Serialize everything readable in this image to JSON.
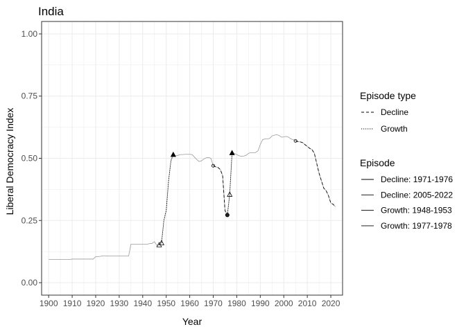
{
  "chart_data": {
    "type": "line",
    "title": "India",
    "xlabel": "Year",
    "ylabel": "Liberal Democracy Index",
    "xlim": [
      1897,
      2025
    ],
    "ylim": [
      -0.05,
      1.05
    ],
    "x_ticks": [
      1900,
      1910,
      1920,
      1930,
      1940,
      1950,
      1960,
      1970,
      1980,
      1990,
      2000,
      2010,
      2020
    ],
    "y_ticks": [
      0.0,
      0.25,
      0.5,
      0.75,
      1.0
    ],
    "y_tick_labels": [
      "0.00",
      "0.25",
      "0.50",
      "0.75",
      "1.00"
    ],
    "grid": true,
    "base_series": {
      "x": [
        1900,
        1901,
        1902,
        1903,
        1904,
        1905,
        1906,
        1907,
        1908,
        1909,
        1910,
        1911,
        1912,
        1913,
        1914,
        1915,
        1916,
        1917,
        1918,
        1919,
        1920,
        1921,
        1922,
        1923,
        1924,
        1925,
        1926,
        1927,
        1928,
        1929,
        1930,
        1931,
        1932,
        1933,
        1934,
        1935,
        1936,
        1937,
        1938,
        1939,
        1940,
        1941,
        1942,
        1943,
        1944,
        1945,
        1946,
        1947,
        1948,
        1949,
        1950,
        1951,
        1952,
        1953,
        1954,
        1955,
        1956,
        1957,
        1958,
        1959,
        1960,
        1961,
        1962,
        1963,
        1964,
        1965,
        1966,
        1967,
        1968,
        1969,
        1970,
        1971,
        1972,
        1973,
        1974,
        1975,
        1976,
        1977,
        1978,
        1979,
        1980,
        1981,
        1982,
        1983,
        1984,
        1985,
        1986,
        1987,
        1988,
        1989,
        1990,
        1991,
        1992,
        1993,
        1994,
        1995,
        1996,
        1997,
        1998,
        1999,
        2000,
        2001,
        2002,
        2003,
        2004,
        2005,
        2006,
        2007,
        2008,
        2009,
        2010,
        2011,
        2012,
        2013,
        2014,
        2015,
        2016,
        2017,
        2018,
        2019,
        2020,
        2021,
        2022
      ],
      "y": [
        0.093,
        0.093,
        0.093,
        0.093,
        0.093,
        0.093,
        0.093,
        0.093,
        0.093,
        0.093,
        0.095,
        0.095,
        0.095,
        0.095,
        0.095,
        0.095,
        0.095,
        0.095,
        0.095,
        0.095,
        0.105,
        0.105,
        0.106,
        0.108,
        0.108,
        0.107,
        0.107,
        0.107,
        0.107,
        0.107,
        0.107,
        0.107,
        0.107,
        0.107,
        0.107,
        0.155,
        0.155,
        0.155,
        0.155,
        0.155,
        0.155,
        0.155,
        0.155,
        0.157,
        0.158,
        0.165,
        0.15,
        0.152,
        0.16,
        0.25,
        0.29,
        0.41,
        0.49,
        0.515,
        0.51,
        0.512,
        0.515,
        0.515,
        0.516,
        0.516,
        0.516,
        0.515,
        0.505,
        0.495,
        0.487,
        0.49,
        0.497,
        0.502,
        0.503,
        0.5,
        0.47,
        0.466,
        0.463,
        0.455,
        0.43,
        0.29,
        0.272,
        0.355,
        0.522,
        0.52,
        0.515,
        0.51,
        0.508,
        0.509,
        0.512,
        0.52,
        0.523,
        0.522,
        0.523,
        0.53,
        0.555,
        0.575,
        0.578,
        0.578,
        0.58,
        0.59,
        0.593,
        0.595,
        0.592,
        0.585,
        0.586,
        0.588,
        0.585,
        0.578,
        0.575,
        0.57,
        0.567,
        0.566,
        0.563,
        0.555,
        0.548,
        0.54,
        0.535,
        0.52,
        0.48,
        0.44,
        0.41,
        0.38,
        0.37,
        0.35,
        0.32,
        0.315,
        0.305
      ]
    },
    "series": [
      {
        "name": "Growth: 1948-1953",
        "type": "Growth",
        "x": [
          1948,
          1949,
          1950,
          1951,
          1952,
          1953
        ],
        "y": [
          0.16,
          0.25,
          0.29,
          0.41,
          0.49,
          0.515
        ]
      },
      {
        "name": "Decline: 1971-1976",
        "type": "Decline",
        "x": [
          1970,
          1971,
          1972,
          1973,
          1974,
          1975,
          1976
        ],
        "y": [
          0.47,
          0.466,
          0.463,
          0.455,
          0.43,
          0.29,
          0.272
        ]
      },
      {
        "name": "Growth: 1977-1978",
        "type": "Growth",
        "x": [
          1976,
          1977,
          1978
        ],
        "y": [
          0.272,
          0.355,
          0.522
        ]
      },
      {
        "name": "Decline: 2005-2022",
        "type": "Decline",
        "x": [
          2005,
          2006,
          2007,
          2008,
          2009,
          2010,
          2011,
          2012,
          2013,
          2014,
          2015,
          2016,
          2017,
          2018,
          2019,
          2020,
          2021,
          2022
        ],
        "y": [
          0.57,
          0.567,
          0.566,
          0.563,
          0.555,
          0.548,
          0.54,
          0.535,
          0.52,
          0.48,
          0.44,
          0.41,
          0.38,
          0.37,
          0.35,
          0.32,
          0.315,
          0.305
        ]
      }
    ],
    "markers": [
      {
        "x": 1947,
        "y": 0.152,
        "shape": "triangle-open"
      },
      {
        "x": 1948,
        "y": 0.16,
        "shape": "triangle-open"
      },
      {
        "x": 1953,
        "y": 0.515,
        "shape": "triangle-filled"
      },
      {
        "x": 1970,
        "y": 0.47,
        "shape": "circle-open"
      },
      {
        "x": 1976,
        "y": 0.272,
        "shape": "circle-filled"
      },
      {
        "x": 1977,
        "y": 0.355,
        "shape": "triangle-open"
      },
      {
        "x": 1978,
        "y": 0.522,
        "shape": "triangle-filled"
      },
      {
        "x": 2005,
        "y": 0.57,
        "shape": "circle-open"
      }
    ],
    "legend": {
      "placement": "right",
      "episode_type_title": "Episode type",
      "episode_types": [
        {
          "label": "Decline",
          "dash": "dashed"
        },
        {
          "label": "Growth",
          "dash": "dotted"
        }
      ],
      "episode_title": "Episode",
      "episodes": [
        "Decline: 1971-1976",
        "Decline: 2005-2022",
        "Growth: 1948-1953",
        "Growth: 1977-1978"
      ]
    },
    "colors": {
      "base_line": "#9a9a9a",
      "episode_line": "#000000",
      "grid": "#ebebeb",
      "panel_border": "#333333"
    }
  }
}
